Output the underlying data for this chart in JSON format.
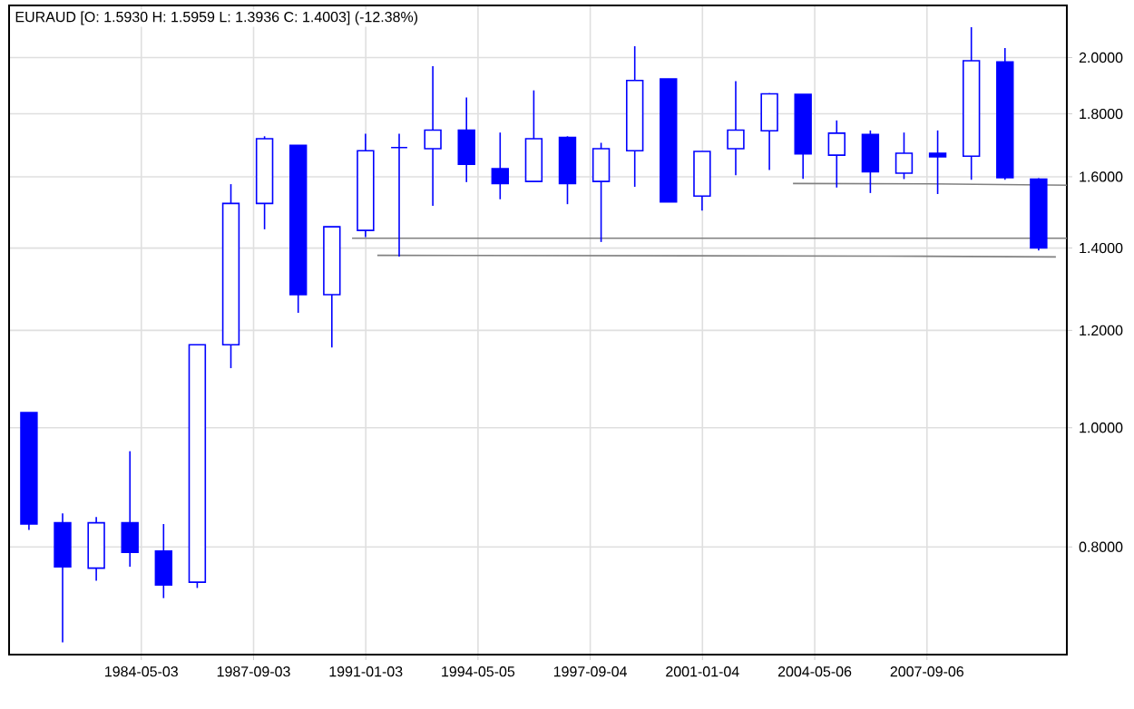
{
  "chart_data": {
    "type": "candlestick",
    "title": "EURAUD [O: 1.5930  H: 1.5959  L: 1.3936  C: 1.4003] (-12.38%)",
    "color": "#0000ff",
    "x": [
      "1980-12-31",
      "1981-12-31",
      "1982-12-31",
      "1983-12-31",
      "1984-12-31",
      "1985-12-31",
      "1986-12-31",
      "1987-12-31",
      "1988-12-31",
      "1989-12-31",
      "1990-12-31",
      "1991-12-31",
      "1992-12-31",
      "1993-12-31",
      "1994-12-31",
      "1995-12-31",
      "1996-12-31",
      "1997-12-31",
      "1998-12-31",
      "1999-12-31",
      "2000-12-31",
      "2001-12-31",
      "2002-12-31",
      "2003-12-31",
      "2004-12-31",
      "2005-12-31",
      "2006-12-31",
      "2007-12-31",
      "2008-12-31",
      "2009-12-31",
      "2010-12-31"
    ],
    "ohlc": [
      [
        1.029,
        1.029,
        0.826,
        0.835
      ],
      [
        0.837,
        0.852,
        0.669,
        0.771
      ],
      [
        0.769,
        0.846,
        0.751,
        0.837
      ],
      [
        0.837,
        0.957,
        0.771,
        0.792
      ],
      [
        0.794,
        0.835,
        0.727,
        0.745
      ],
      [
        0.749,
        1.168,
        0.741,
        1.168
      ],
      [
        1.168,
        1.578,
        1.118,
        1.522
      ],
      [
        1.522,
        1.726,
        1.45,
        1.718
      ],
      [
        1.697,
        1.697,
        1.24,
        1.283
      ],
      [
        1.283,
        1.457,
        1.162,
        1.457
      ],
      [
        1.447,
        1.734,
        1.429,
        1.68
      ],
      [
        1.69,
        1.734,
        1.378,
        1.69
      ],
      [
        1.686,
        1.968,
        1.515,
        1.746
      ],
      [
        1.746,
        1.856,
        1.584,
        1.638
      ],
      [
        1.624,
        1.738,
        1.534,
        1.58
      ],
      [
        1.586,
        1.881,
        1.586,
        1.718
      ],
      [
        1.722,
        1.726,
        1.52,
        1.58
      ],
      [
        1.586,
        1.705,
        1.416,
        1.686
      ],
      [
        1.68,
        2.043,
        1.57,
        1.916
      ],
      [
        1.922,
        1.922,
        1.526,
        1.526
      ],
      [
        1.543,
        1.678,
        1.502,
        1.678
      ],
      [
        1.686,
        1.914,
        1.605,
        1.746
      ],
      [
        1.744,
        1.871,
        1.62,
        1.869
      ],
      [
        1.867,
        1.867,
        1.594,
        1.67
      ],
      [
        1.666,
        1.778,
        1.568,
        1.736
      ],
      [
        1.732,
        1.745,
        1.552,
        1.615
      ],
      [
        1.611,
        1.738,
        1.593,
        1.672
      ],
      [
        1.672,
        1.745,
        1.549,
        1.661
      ],
      [
        1.663,
        2.117,
        1.591,
        1.988
      ],
      [
        1.984,
        2.036,
        1.591,
        1.597
      ],
      [
        1.593,
        1.5959,
        1.3936,
        1.4003
      ]
    ],
    "series": [
      {
        "type": "line",
        "color": "#808080",
        "x": [
          "1990-08-07",
          "2011-11-02"
        ],
        "values": [
          1.426,
          1.426
        ]
      },
      {
        "type": "line",
        "color": "#808080",
        "x": [
          "1991-05-08",
          "2006-06-10",
          "2011-07-06"
        ],
        "values": [
          1.381,
          1.379,
          1.377
        ]
      },
      {
        "type": "line",
        "color": "#808080",
        "x": [
          "2003-09-13",
          "2007-09-27",
          "2011-11-02"
        ],
        "values": [
          1.58,
          1.579,
          1.575
        ]
      }
    ],
    "xlim": [
      "1980-05-29",
      "2011-11-02"
    ],
    "xticks": [
      "1984-05-03",
      "1987-09-03",
      "1991-01-03",
      "1994-05-05",
      "1997-09-04",
      "2001-01-04",
      "2004-05-06",
      "2007-09-06"
    ],
    "ylim": [
      0.654,
      2.205
    ],
    "yticks": [
      {
        "value": 0.8,
        "label": "0.8000"
      },
      {
        "value": 1.0,
        "label": "1.0000"
      },
      {
        "value": 1.2,
        "label": "1.2000"
      },
      {
        "value": 1.4,
        "label": "1.4000"
      },
      {
        "value": 1.6,
        "label": "1.6000"
      },
      {
        "value": 1.8,
        "label": "1.8000"
      },
      {
        "value": 2.0,
        "label": "2.0000"
      }
    ],
    "log": true,
    "grid": true
  }
}
